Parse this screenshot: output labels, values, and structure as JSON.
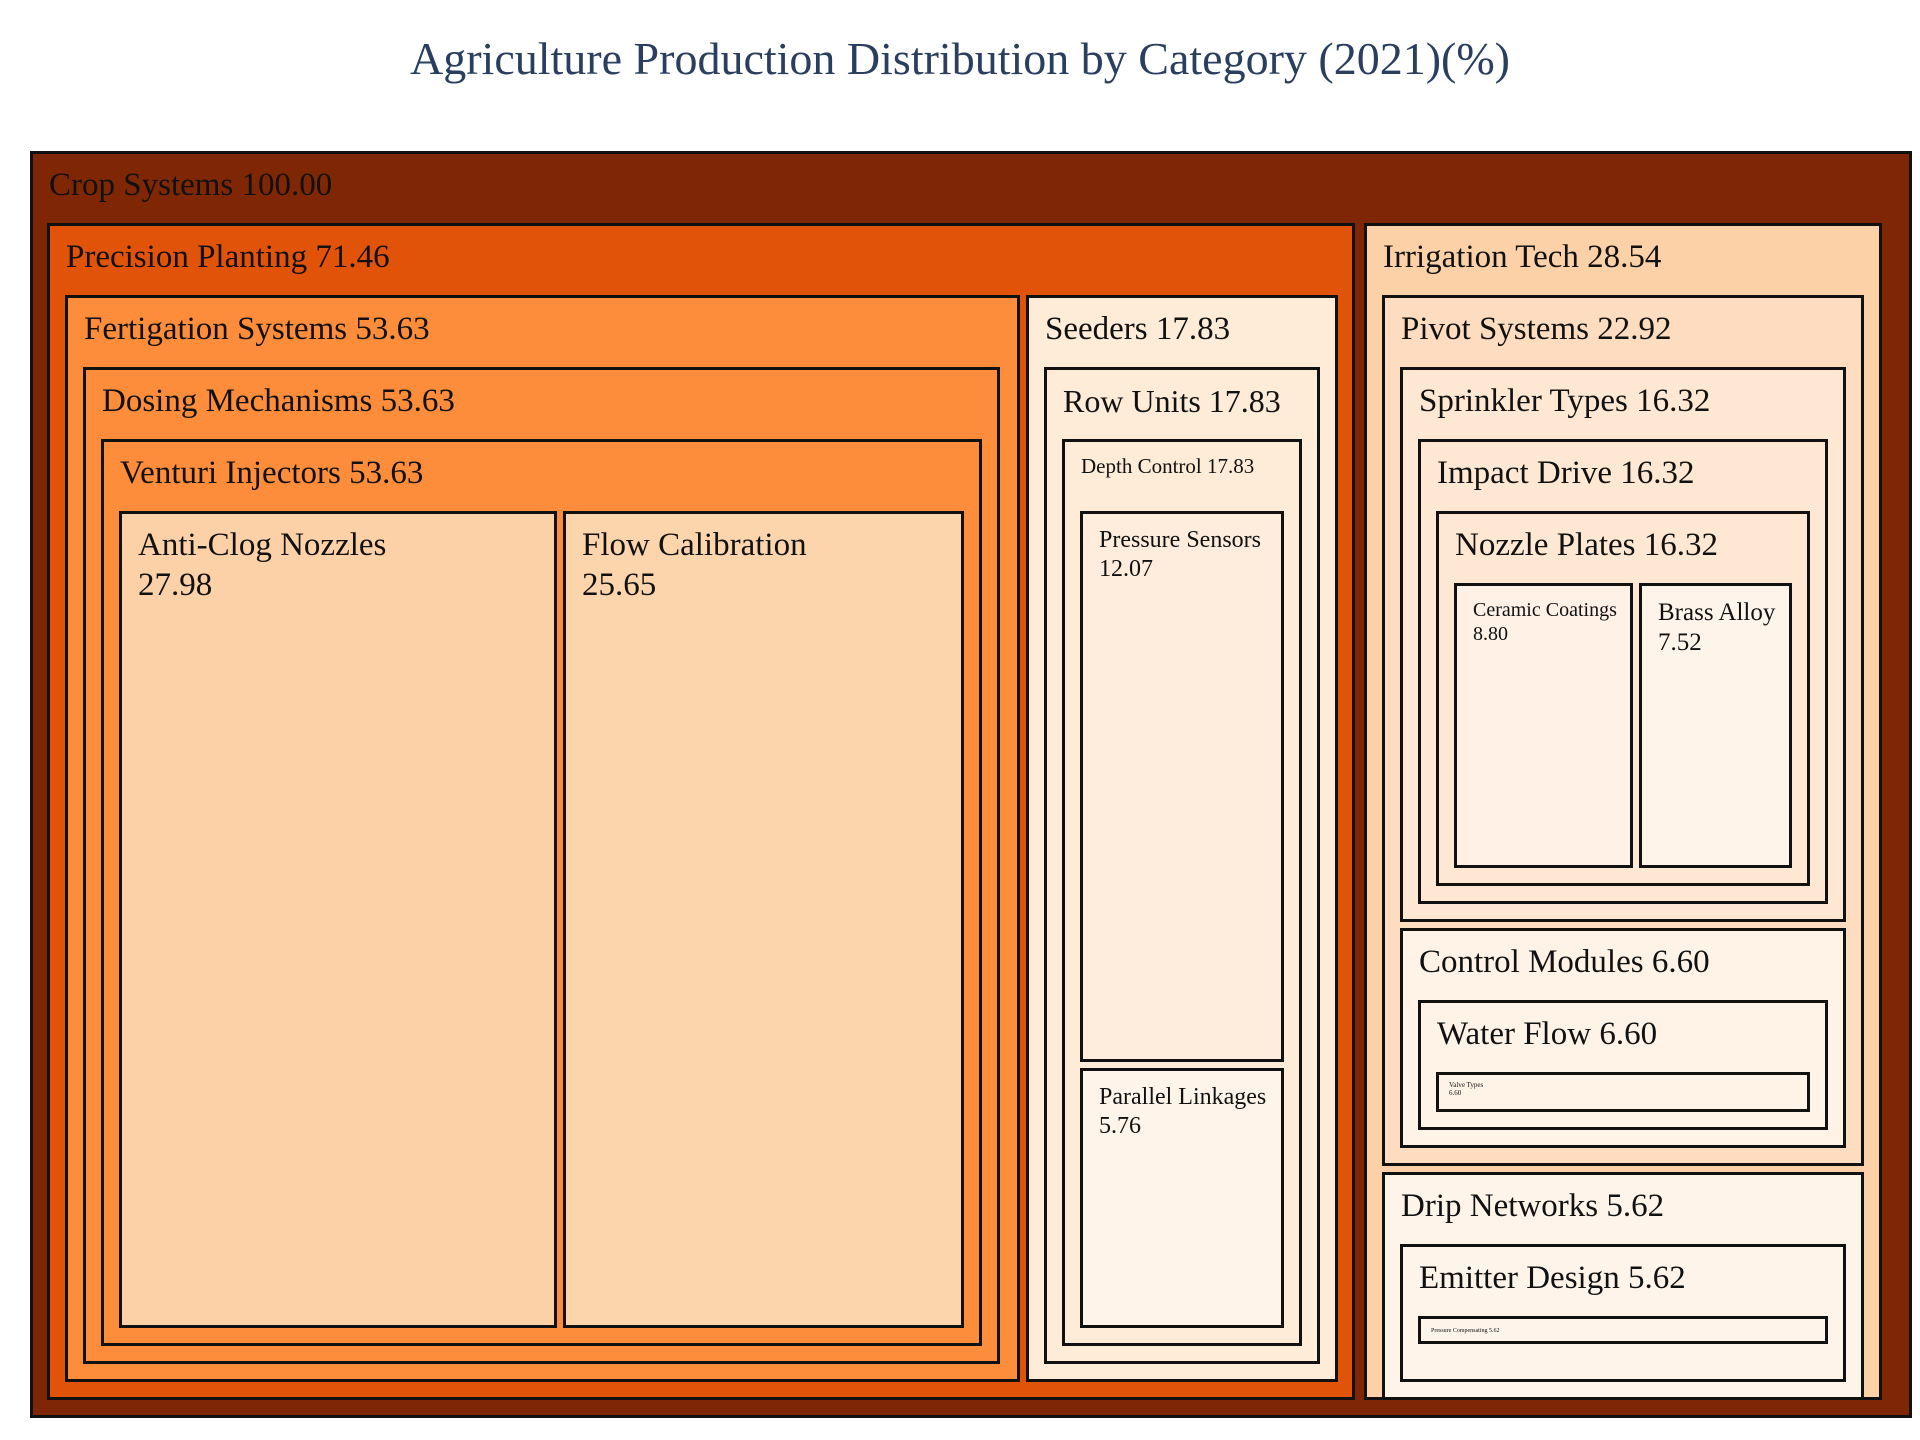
{
  "title": "Agriculture Production Distribution by Category (2021)(%)",
  "chart_data": {
    "type": "treemap",
    "title": "Agriculture Production Distribution by Category (2021)(%)",
    "colorscale": "Oranges",
    "root": {
      "id": "crop-systems",
      "label": "Crop Systems",
      "value": 100.0,
      "value_text": "100.00",
      "color": "#7f2704",
      "children": [
        {
          "id": "precision-planting",
          "label": "Precision Planting",
          "value": 71.46,
          "value_text": "71.46",
          "color": "#e2530a",
          "children": [
            {
              "id": "fertigation-systems",
              "label": "Fertigation Systems",
              "value": 53.63,
              "value_text": "53.63",
              "color": "#fd8c3b",
              "children": [
                {
                  "id": "dosing-mechanisms",
                  "label": "Dosing Mechanisms",
                  "value": 53.63,
                  "value_text": "53.63",
                  "color": "#fd8c3b",
                  "children": [
                    {
                      "id": "venturi-injectors",
                      "label": "Venturi Injectors",
                      "value": 53.63,
                      "value_text": "53.63",
                      "color": "#fd8c3b",
                      "children": [
                        {
                          "id": "anti-clog-nozzles",
                          "label": "Anti-Clog Nozzles",
                          "value": 27.98,
                          "value_text": "27.98",
                          "color": "#fdd1a8"
                        },
                        {
                          "id": "flow-calibration",
                          "label": "Flow Calibration",
                          "value": 25.65,
                          "value_text": "25.65",
                          "color": "#fdd5ac"
                        }
                      ]
                    }
                  ]
                }
              ]
            },
            {
              "id": "seeders",
              "label": "Seeders",
              "value": 17.83,
              "value_text": "17.83",
              "color": "#feebd8",
              "children": [
                {
                  "id": "row-units",
                  "label": "Row Units",
                  "value": 17.83,
                  "value_text": "17.83",
                  "color": "#feebd8",
                  "children": [
                    {
                      "id": "depth-control",
                      "label": "Depth Control",
                      "value": 17.83,
                      "value_text": "17.83",
                      "color": "#feebd8",
                      "children": [
                        {
                          "id": "pressure-sensors",
                          "label": "Pressure Sensors",
                          "value": 12.07,
                          "value_text": "12.07",
                          "color": "#feecdc"
                        },
                        {
                          "id": "parallel-linkages",
                          "label": "Parallel Linkages",
                          "value": 5.76,
                          "value_text": "5.76",
                          "color": "#fff4ea"
                        }
                      ]
                    }
                  ]
                }
              ]
            }
          ]
        },
        {
          "id": "irrigation-tech",
          "label": "Irrigation Tech",
          "value": 28.54,
          "value_text": "28.54",
          "color": "#fdd1a8",
          "children": [
            {
              "id": "pivot-systems",
              "label": "Pivot Systems",
              "value": 22.92,
              "value_text": "22.92",
              "color": "#fddcbf",
              "children": [
                {
                  "id": "sprinkler-types",
                  "label": "Sprinkler Types",
                  "value": 16.32,
                  "value_text": "16.32",
                  "color": "#fee8d3",
                  "children": [
                    {
                      "id": "impact-drive",
                      "label": "Impact Drive",
                      "value": 16.32,
                      "value_text": "16.32",
                      "color": "#fee8d3",
                      "children": [
                        {
                          "id": "nozzle-plates",
                          "label": "Nozzle Plates",
                          "value": 16.32,
                          "value_text": "16.32",
                          "color": "#fee8d3",
                          "children": [
                            {
                              "id": "ceramic-coatings",
                              "label": "Ceramic Coatings",
                              "value": 8.8,
                              "value_text": "8.80",
                              "color": "#fff1e5"
                            },
                            {
                              "id": "brass-alloy",
                              "label": "Brass Alloy",
                              "value": 7.52,
                              "value_text": "7.52",
                              "color": "#fff4ea"
                            }
                          ]
                        }
                      ]
                    }
                  ]
                },
                {
                  "id": "control-modules",
                  "label": "Control Modules",
                  "value": 6.6,
                  "value_text": "6.60",
                  "color": "#fff3e8",
                  "children": [
                    {
                      "id": "water-flow",
                      "label": "Water Flow",
                      "value": 6.6,
                      "value_text": "6.60",
                      "color": "#fff3e8",
                      "children": [
                        {
                          "id": "valve-types",
                          "label": "Valve Types",
                          "value": 6.6,
                          "value_text": "6.60",
                          "color": "#fff3e8"
                        }
                      ]
                    }
                  ]
                }
              ]
            },
            {
              "id": "drip-networks",
              "label": "Drip Networks",
              "value": 5.62,
              "value_text": "5.62",
              "color": "#fff4ea",
              "children": [
                {
                  "id": "emitter-design",
                  "label": "Emitter Design",
                  "value": 5.62,
                  "value_text": "5.62",
                  "color": "#fff4ea",
                  "children": [
                    {
                      "id": "pressure-compensating",
                      "label": "Pressure Compensating",
                      "value": 5.62,
                      "value_text": "5.62",
                      "color": "#fff4ea"
                    }
                  ]
                }
              ]
            }
          ]
        }
      ]
    }
  }
}
